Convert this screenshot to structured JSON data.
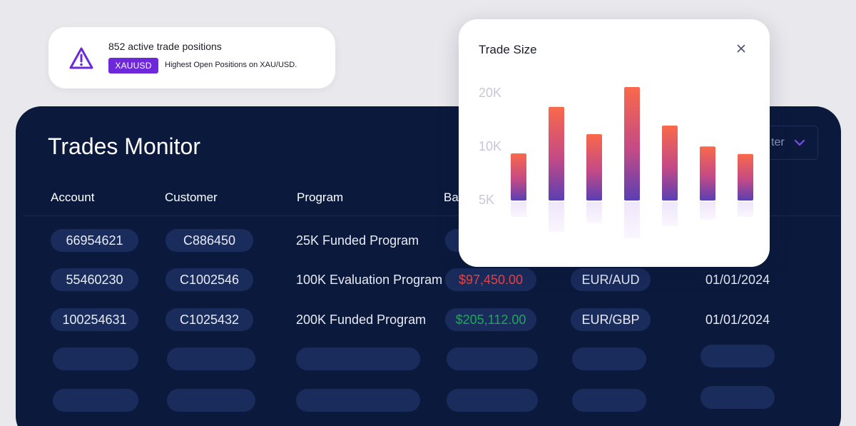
{
  "alert": {
    "title": "852 active trade positions",
    "badge": "XAUUSD",
    "description": "Highest Open Positions on XAU/USD.",
    "icon": "warning-triangle-icon",
    "accent": "#6d28d9"
  },
  "panel": {
    "title": "Trades Monitor",
    "filter_label": "ter",
    "headers": [
      "Account",
      "Customer",
      "Program",
      "Ba"
    ],
    "rows": [
      {
        "account": "66954621",
        "customer": "C886450",
        "program": "25K Funded Program",
        "balance": "",
        "pair": "",
        "date": ""
      },
      {
        "account": "55460230",
        "customer": "C1002546",
        "program": "100K Evaluation Program",
        "balance": "$97,450.00",
        "pair": "EUR/AUD",
        "date": "01/01/2024"
      },
      {
        "account": "100254631",
        "customer": "C1025432",
        "program": "200K Funded Program",
        "balance": "$205,112.00",
        "pair": "EUR/GBP",
        "date": "01/01/2024"
      }
    ]
  },
  "chart_data": {
    "type": "bar",
    "title": "Trade Size",
    "tick_labels": [
      "20K",
      "10K",
      "5K"
    ],
    "values": [
      8800,
      17500,
      12400,
      21200,
      14000,
      10100,
      8700
    ],
    "colors": {
      "top": "#f9694a",
      "bottom": "#5a3fb2",
      "reflection": "#f4eefc"
    }
  }
}
